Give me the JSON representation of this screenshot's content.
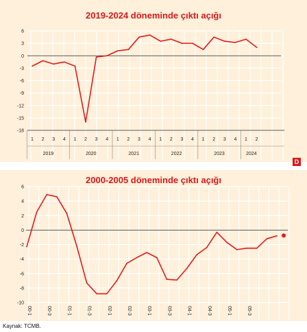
{
  "source": "Kaynak: TCMB.",
  "logo_text": "D",
  "colors": {
    "line": "#e31a1c",
    "background": "#fef0da",
    "title": "#d7191c",
    "zero_line": "#222222",
    "grid": "#ffffff"
  },
  "chart_data": [
    {
      "type": "line",
      "title": "2019-2024 döneminde çıktı açığı",
      "xlabel": "",
      "ylabel": "",
      "ylim": [
        -18,
        6
      ],
      "yticks": [
        6,
        3,
        0,
        -3,
        -6,
        -9,
        -12,
        -15,
        -18
      ],
      "grid": true,
      "categories": [
        {
          "quarter": "1",
          "year": "2019"
        },
        {
          "quarter": "2",
          "year": "2019"
        },
        {
          "quarter": "3",
          "year": "2019"
        },
        {
          "quarter": "4",
          "year": "2019"
        },
        {
          "quarter": "1",
          "year": "2020"
        },
        {
          "quarter": "2",
          "year": "2020"
        },
        {
          "quarter": "3",
          "year": "2020"
        },
        {
          "quarter": "4",
          "year": "2020"
        },
        {
          "quarter": "1",
          "year": "2021"
        },
        {
          "quarter": "2",
          "year": "2021"
        },
        {
          "quarter": "3",
          "year": "2021"
        },
        {
          "quarter": "4",
          "year": "2021"
        },
        {
          "quarter": "1",
          "year": "2022"
        },
        {
          "quarter": "2",
          "year": "2022"
        },
        {
          "quarter": "3",
          "year": "2022"
        },
        {
          "quarter": "4",
          "year": "2022"
        },
        {
          "quarter": "1",
          "year": "2023"
        },
        {
          "quarter": "2",
          "year": "2023"
        },
        {
          "quarter": "3",
          "year": "2023"
        },
        {
          "quarter": "4",
          "year": "2023"
        },
        {
          "quarter": "1",
          "year": "2024"
        },
        {
          "quarter": "2",
          "year": "2024"
        }
      ],
      "year_labels": [
        "2019",
        "2020",
        "2021",
        "2022",
        "2023",
        "2024"
      ],
      "series": [
        {
          "values": [
            -2.5,
            -1.2,
            -2.0,
            -1.5,
            -2.5,
            -16.0,
            -0.3,
            0.0,
            1.2,
            1.5,
            4.5,
            5.0,
            3.5,
            4.0,
            3.0,
            3.0,
            1.5,
            4.5,
            3.5,
            3.2,
            4.0,
            2.0
          ]
        }
      ]
    },
    {
      "type": "line",
      "title": "2000-2005 döneminde çıktı açığı",
      "xlabel": "",
      "ylabel": "",
      "ylim": [
        -10,
        6
      ],
      "yticks": [
        6,
        4,
        2,
        0,
        -2,
        -4,
        -6,
        -8,
        -10
      ],
      "grid": true,
      "x_tick_labels": [
        "00-1",
        "00-3",
        "01-1",
        "01-3",
        "02-1",
        "02-3",
        "03-1",
        "03-3",
        "04-1",
        "04-3",
        "05-1",
        "05-3"
      ],
      "series": [
        {
          "values": [
            -2.3,
            2.5,
            4.9,
            4.6,
            2.3,
            -2.2,
            -7.3,
            -8.8,
            -8.8,
            -7.0,
            -4.6,
            -3.8,
            -3.1,
            -3.8,
            -6.8,
            -6.9,
            -5.3,
            -3.4,
            -2.4,
            -0.3,
            -1.7,
            -2.7,
            -2.5,
            -2.5,
            -1.2,
            -0.8
          ]
        }
      ],
      "last_point_marker": true
    }
  ]
}
